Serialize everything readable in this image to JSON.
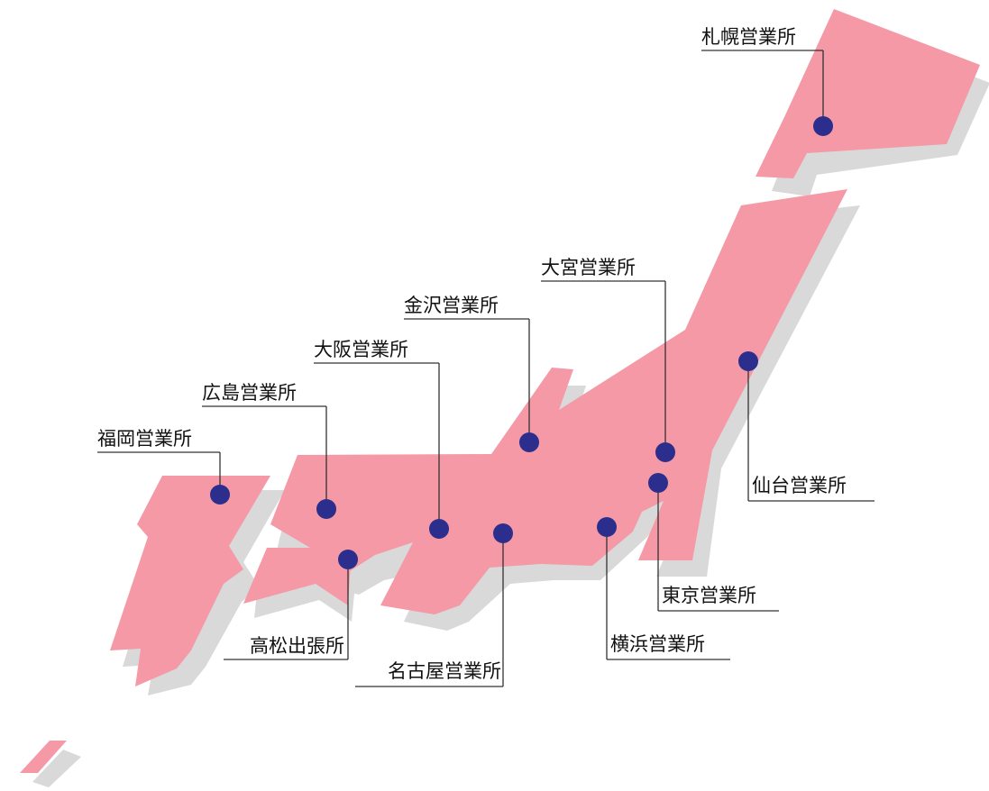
{
  "map": {
    "colors": {
      "land": "#f499a5",
      "shadow": "#d9d9d9",
      "pin": "#2b2e8c",
      "leader": "#333333",
      "text": "#111111",
      "background": "#ffffff"
    },
    "offices": [
      {
        "id": "sapporo",
        "name": "札幌営業所"
      },
      {
        "id": "omiya",
        "name": "大宮営業所"
      },
      {
        "id": "kanazawa",
        "name": "金沢営業所"
      },
      {
        "id": "osaka",
        "name": "大阪営業所"
      },
      {
        "id": "hiroshima",
        "name": "広島営業所"
      },
      {
        "id": "fukuoka",
        "name": "福岡営業所"
      },
      {
        "id": "sendai",
        "name": "仙台営業所"
      },
      {
        "id": "tokyo",
        "name": "東京営業所"
      },
      {
        "id": "yokohama",
        "name": "横浜営業所"
      },
      {
        "id": "takamatsu",
        "name": "高松出張所"
      },
      {
        "id": "nagoya",
        "name": "名古屋営業所"
      }
    ]
  }
}
